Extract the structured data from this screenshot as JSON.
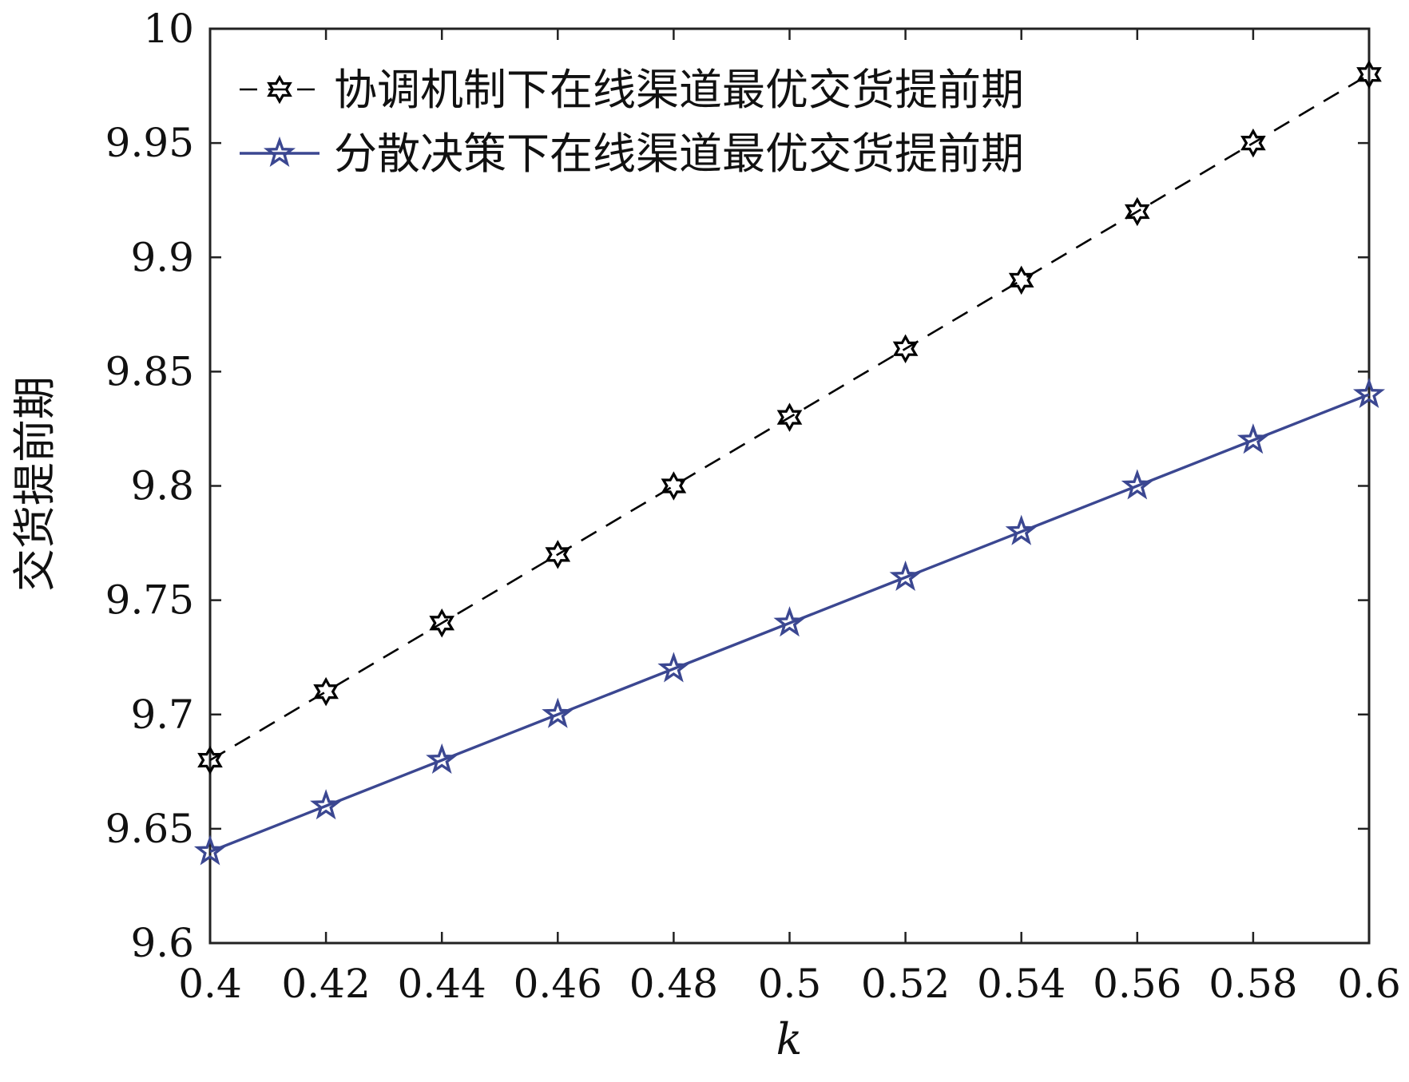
{
  "chart_data": {
    "type": "line",
    "xlabel": "k",
    "ylabel": "交货提前期",
    "xlim": [
      0.4,
      0.6
    ],
    "ylim": [
      9.6,
      10
    ],
    "grid": false,
    "legend_position": "top-left",
    "x": [
      0.4,
      0.42,
      0.44,
      0.46,
      0.48,
      0.5,
      0.52,
      0.54,
      0.56,
      0.58,
      0.6
    ],
    "x_tick_labels": [
      "0.4",
      "0.42",
      "0.44",
      "0.46",
      "0.48",
      "0.5",
      "0.52",
      "0.54",
      "0.56",
      "0.58",
      "0.6"
    ],
    "y_ticks": [
      9.6,
      9.65,
      9.7,
      9.75,
      9.8,
      9.85,
      9.9,
      9.95,
      10
    ],
    "y_tick_labels": [
      "9.6",
      "9.65",
      "9.7",
      "9.75",
      "9.8",
      "9.85",
      "9.9",
      "9.95",
      "10"
    ],
    "series": [
      {
        "name": "协调机制下在线渠道最优交货提前期",
        "values": [
          9.68,
          9.71,
          9.74,
          9.77,
          9.8,
          9.83,
          9.86,
          9.89,
          9.92,
          9.95,
          9.98
        ],
        "color": "#000000",
        "line_style": "dashed",
        "marker": "hexagram"
      },
      {
        "name": "分散决策下在线渠道最优交货提前期",
        "values": [
          9.64,
          9.66,
          9.68,
          9.7,
          9.72,
          9.74,
          9.76,
          9.78,
          9.8,
          9.82,
          9.84
        ],
        "color": "#3b4791",
        "line_style": "solid",
        "marker": "pentagram"
      }
    ]
  }
}
